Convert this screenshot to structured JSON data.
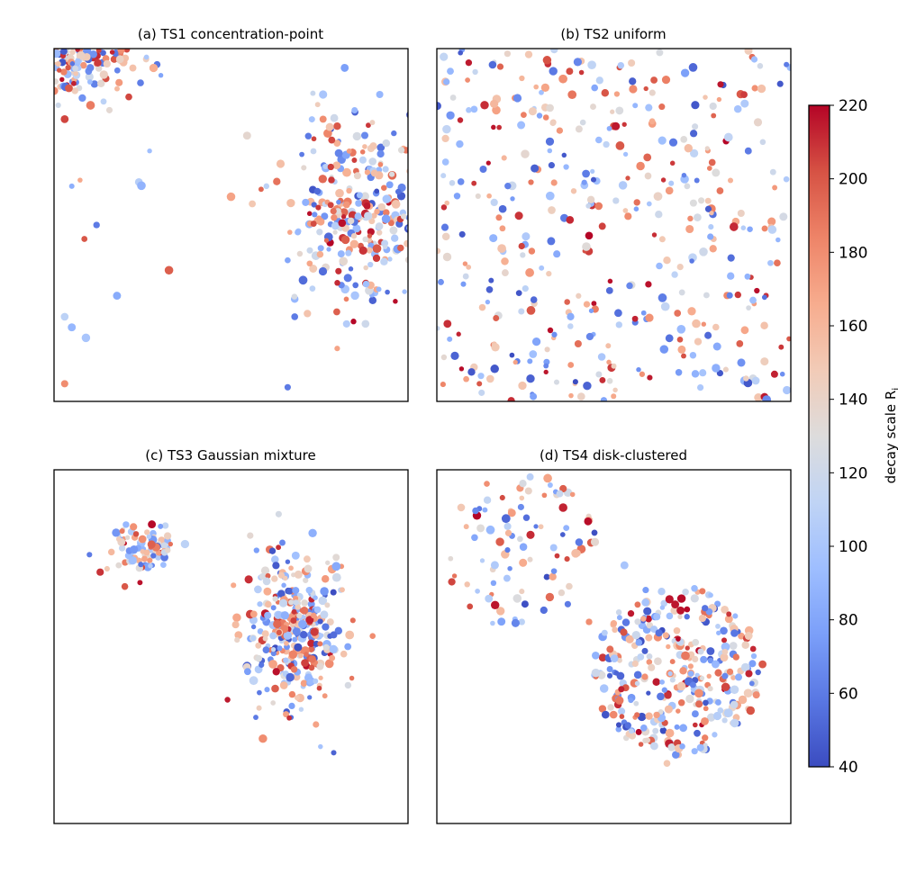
{
  "chart_data": {
    "type": "scatter",
    "panels": [
      {
        "title": "(a) TS1 concentration-point",
        "distribution": "concentration-point",
        "n_points": 420,
        "xlim": [
          0,
          1
        ],
        "ylim": [
          0,
          1
        ],
        "points_approx": [
          [
            0.04,
            0.96
          ],
          [
            0.1,
            0.92
          ],
          [
            0.17,
            0.97
          ],
          [
            0.26,
            0.97
          ],
          [
            0.08,
            0.86
          ],
          [
            0.14,
            0.85
          ],
          [
            0.03,
            0.8
          ],
          [
            0.27,
            0.71
          ],
          [
            0.05,
            0.61
          ],
          [
            0.12,
            0.5
          ],
          [
            0.5,
            0.58
          ],
          [
            0.6,
            0.61
          ],
          [
            0.7,
            0.7
          ],
          [
            0.8,
            0.78
          ],
          [
            0.85,
            0.82
          ],
          [
            0.9,
            0.68
          ],
          [
            0.72,
            0.5
          ],
          [
            0.78,
            0.45
          ],
          [
            0.66,
            0.4
          ],
          [
            0.73,
            0.32
          ],
          [
            0.85,
            0.3
          ],
          [
            0.94,
            0.43
          ],
          [
            0.88,
            0.22
          ],
          [
            0.83,
            0.35
          ],
          [
            0.76,
            0.8
          ],
          [
            0.96,
            0.76
          ],
          [
            0.68,
            0.29
          ],
          [
            0.8,
            0.15
          ],
          [
            0.66,
            0.04
          ],
          [
            0.03,
            0.05
          ],
          [
            0.05,
            0.21
          ],
          [
            0.09,
            0.18
          ],
          [
            0.03,
            0.24
          ],
          [
            0.68,
            0.24
          ],
          [
            0.92,
            0.87
          ],
          [
            0.56,
            0.56
          ],
          [
            0.76,
            0.87
          ],
          [
            0.91,
            0.59
          ],
          [
            0.86,
            0.48
          ]
        ],
        "point_values_approx": [
          210,
          120,
          200,
          145,
          70,
          110,
          205,
          95,
          85,
          60,
          170,
          110,
          60,
          200,
          50,
          120,
          150,
          220,
          80,
          110,
          100,
          85,
          120,
          60,
          180,
          60,
          90,
          170,
          60,
          180,
          90,
          100,
          110,
          60,
          90,
          150,
          100,
          70,
          210
        ]
      },
      {
        "title": "(b) TS2 uniform",
        "distribution": "uniform",
        "n_points": 420,
        "xlim": [
          0,
          1
        ],
        "ylim": [
          0,
          1
        ],
        "points_approx": [
          [
            0.09,
            0.96
          ],
          [
            0.22,
            0.86
          ],
          [
            0.5,
            0.78
          ],
          [
            0.73,
            0.84
          ],
          [
            0.95,
            0.65
          ],
          [
            0.02,
            0.55
          ],
          [
            0.36,
            0.52
          ],
          [
            0.65,
            0.4
          ],
          [
            0.25,
            0.32
          ],
          [
            0.93,
            0.3
          ],
          [
            0.16,
            0.16
          ],
          [
            0.57,
            0.09
          ],
          [
            0.8,
            0.08
          ],
          [
            0.46,
            0.91
          ],
          [
            0.12,
            0.05
          ],
          [
            0.7,
            0.63
          ],
          [
            0.33,
            0.18
          ],
          [
            0.86,
            0.11
          ],
          [
            0.03,
            0.22
          ],
          [
            0.43,
            0.47
          ],
          [
            0.6,
            0.56
          ],
          [
            0.78,
            0.53
          ],
          [
            0.19,
            0.69
          ],
          [
            0.55,
            0.33
          ],
          [
            0.88,
            0.71
          ],
          [
            0.08,
            0.39
          ],
          [
            0.29,
            0.81
          ],
          [
            0.68,
            0.25
          ],
          [
            0.97,
            0.9
          ],
          [
            0.39,
            0.05
          ]
        ],
        "point_values_approx": [
          215,
          180,
          200,
          45,
          120,
          210,
          60,
          150,
          110,
          210,
          190,
          70,
          45,
          110,
          200,
          95,
          160,
          70,
          210,
          220,
          100,
          55,
          160,
          130,
          60,
          175,
          80,
          190,
          45,
          150
        ]
      },
      {
        "title": "(c) TS3 Gaussian mixture",
        "distribution": "gaussian-mixture",
        "n_points": 420,
        "xlim": [
          0,
          1
        ],
        "ylim": [
          0,
          1
        ],
        "components_approx": [
          {
            "center": [
              0.25,
              0.78
            ],
            "spread": [
              0.045,
              0.035
            ],
            "n_points": 90
          },
          {
            "center": [
              0.69,
              0.55
            ],
            "spread": [
              0.07,
              0.11
            ],
            "n_points": 330
          }
        ],
        "points_approx": [
          [
            0.1,
            0.76
          ],
          [
            0.15,
            0.72
          ],
          [
            0.28,
            0.82
          ],
          [
            0.2,
            0.67
          ],
          [
            0.37,
            0.79
          ],
          [
            0.55,
            0.69
          ],
          [
            0.62,
            0.61
          ],
          [
            0.7,
            0.56
          ],
          [
            0.78,
            0.48
          ],
          [
            0.58,
            0.37
          ],
          [
            0.67,
            0.3
          ],
          [
            0.75,
            0.39
          ],
          [
            0.83,
            0.5
          ],
          [
            0.49,
            0.35
          ],
          [
            0.59,
            0.24
          ],
          [
            0.74,
            0.28
          ],
          [
            0.79,
            0.2
          ],
          [
            0.9,
            0.53
          ],
          [
            0.81,
            0.66
          ],
          [
            0.66,
            0.74
          ],
          [
            0.57,
            0.3
          ],
          [
            0.72,
            0.47
          ],
          [
            0.64,
            0.44
          ],
          [
            0.6,
            0.57
          ],
          [
            0.68,
            0.52
          ]
        ],
        "point_values_approx": [
          60,
          150,
          90,
          200,
          110,
          210,
          70,
          110,
          215,
          60,
          55,
          150,
          80,
          215,
          180,
          170,
          50,
          180,
          110,
          55,
          60,
          100,
          195,
          70,
          80
        ]
      },
      {
        "title": "(d) TS4 disk-clustered",
        "distribution": "disk-clustered",
        "n_points": 420,
        "xlim": [
          0,
          1
        ],
        "ylim": [
          0,
          1
        ],
        "disks_approx": [
          {
            "center": [
              0.68,
              0.43
            ],
            "radius": 0.24,
            "n_points": 330
          },
          {
            "center": [
              0.24,
              0.77
            ],
            "radius": 0.22,
            "n_points": 90
          }
        ],
        "points_approx": [
          [
            0.12,
            0.89
          ],
          [
            0.2,
            0.84
          ],
          [
            0.33,
            0.78
          ],
          [
            0.24,
            0.92
          ],
          [
            0.05,
            0.7
          ],
          [
            0.16,
            0.68
          ],
          [
            0.24,
            0.57
          ],
          [
            0.37,
            0.62
          ],
          [
            0.43,
            0.57
          ],
          [
            0.58,
            0.56
          ],
          [
            0.68,
            0.52
          ],
          [
            0.76,
            0.57
          ],
          [
            0.86,
            0.53
          ],
          [
            0.62,
            0.4
          ],
          [
            0.73,
            0.31
          ],
          [
            0.82,
            0.38
          ],
          [
            0.66,
            0.23
          ],
          [
            0.76,
            0.21
          ],
          [
            0.56,
            0.3
          ],
          [
            0.65,
            0.17
          ],
          [
            0.55,
            0.45
          ],
          [
            0.7,
            0.44
          ],
          [
            0.92,
            0.45
          ],
          [
            0.8,
            0.46
          ],
          [
            0.59,
            0.66
          ],
          [
            0.53,
            0.73
          ]
        ],
        "point_values_approx": [
          60,
          110,
          100,
          150,
          190,
          80,
          110,
          60,
          180,
          90,
          210,
          45,
          170,
          215,
          70,
          60,
          90,
          55,
          180,
          150,
          120,
          100,
          200,
          60,
          75,
          100
        ]
      }
    ],
    "colorbar": {
      "label": "decay scale R",
      "label_subscript": "i",
      "min": 40,
      "max": 220,
      "ticks": [
        40,
        60,
        80,
        100,
        120,
        140,
        160,
        180,
        200,
        220
      ],
      "colormap": "coolwarm",
      "colormap_stops": [
        "#3b4cc0",
        "#5977e3",
        "#7b9ff9",
        "#9ebeff",
        "#c0d4f5",
        "#dddcdc",
        "#f2cbb7",
        "#f7ac8e",
        "#ee8468",
        "#d65244",
        "#b40426"
      ]
    },
    "axes": {
      "ticks_visible": false,
      "grid": false,
      "frame_color": "#000000"
    },
    "background": "#ffffff"
  }
}
